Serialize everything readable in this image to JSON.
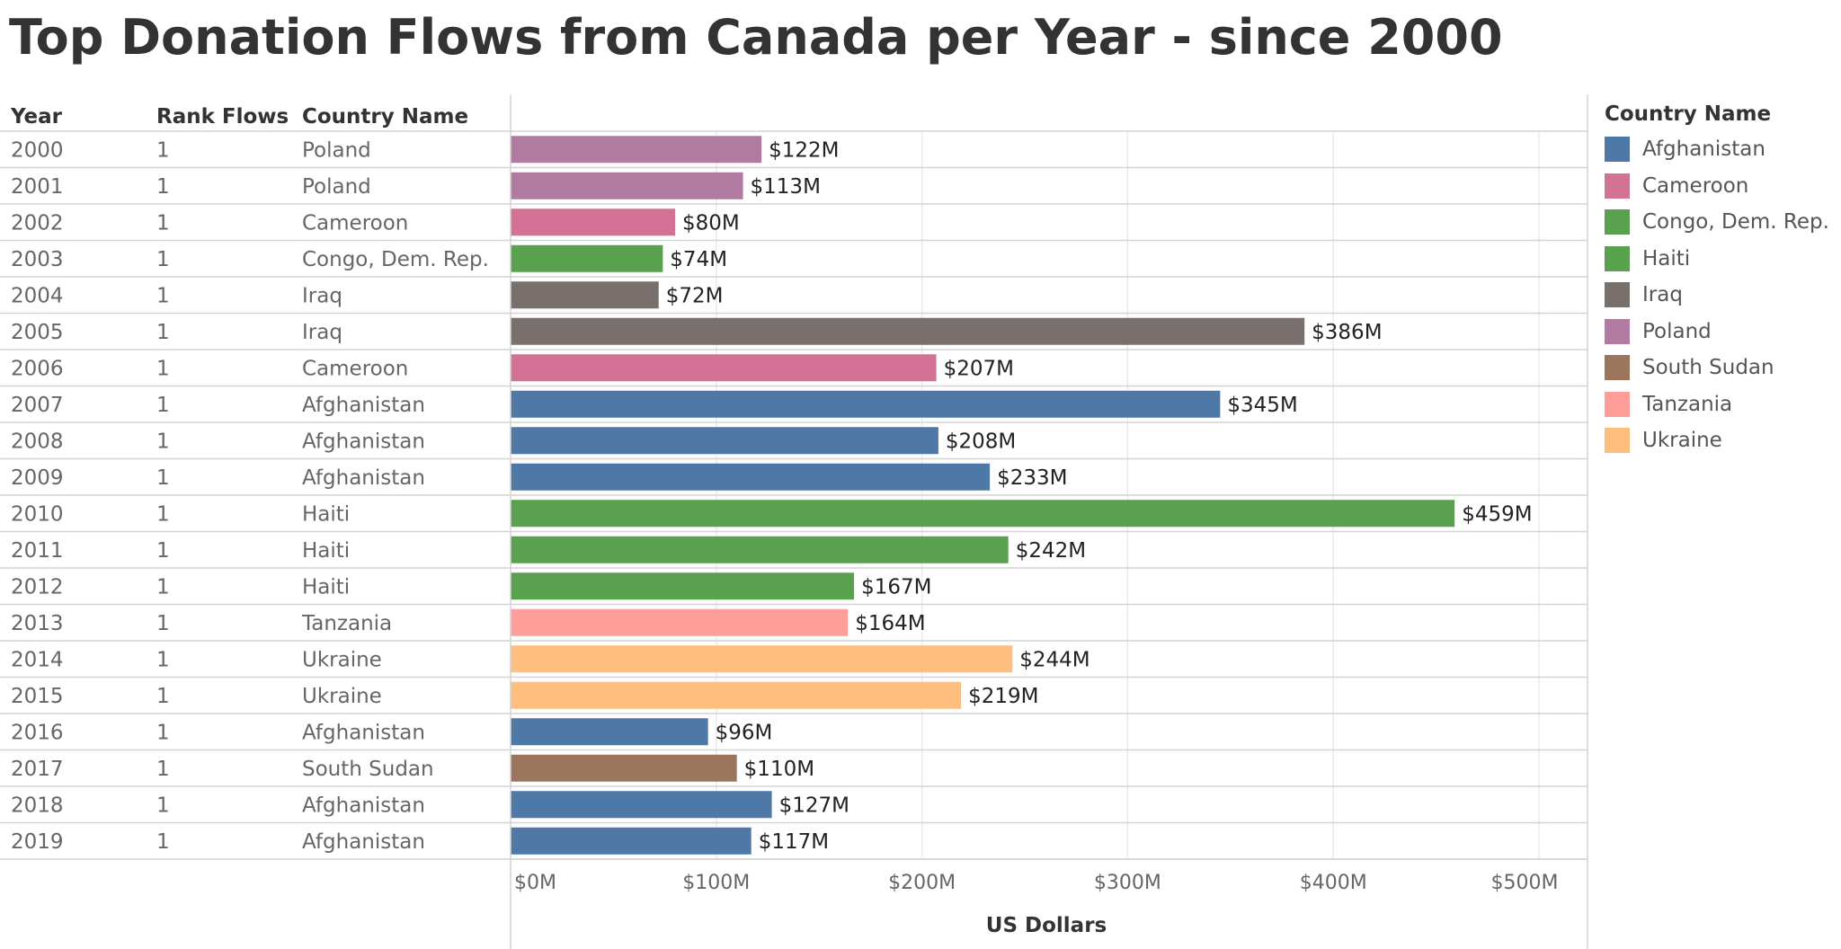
{
  "title": "Top Donation Flows from Canada per Year - since 2000",
  "table_headers": {
    "year": "Year",
    "rank": "Rank Flows",
    "country": "Country Name"
  },
  "legend": {
    "title": "Country Name",
    "items": [
      {
        "label": "Afghanistan",
        "color": "#4e79a7"
      },
      {
        "label": "Cameroon",
        "color": "#d37295"
      },
      {
        "label": "Congo, Dem. Rep.",
        "color": "#59a14f"
      },
      {
        "label": "Haiti",
        "color": "#59a14f"
      },
      {
        "label": "Iraq",
        "color": "#79706e"
      },
      {
        "label": "Poland",
        "color": "#b07aa1"
      },
      {
        "label": "South Sudan",
        "color": "#9c755f"
      },
      {
        "label": "Tanzania",
        "color": "#ff9d9a"
      },
      {
        "label": "Ukraine",
        "color": "#ffbe7d"
      }
    ]
  },
  "chart_data": {
    "type": "bar",
    "orientation": "horizontal",
    "xlabel": "US Dollars",
    "xlim": [
      0,
      500
    ],
    "x_ticks": [
      0,
      100,
      200,
      300,
      400,
      500
    ],
    "x_tick_labels": [
      "$0M",
      "$100M",
      "$200M",
      "$300M",
      "$400M",
      "$500M"
    ],
    "grid": true,
    "legend_position": "right",
    "rows": [
      {
        "year": "2000",
        "rank": "1",
        "country": "Poland",
        "value": 122,
        "label": "$122M"
      },
      {
        "year": "2001",
        "rank": "1",
        "country": "Poland",
        "value": 113,
        "label": "$113M"
      },
      {
        "year": "2002",
        "rank": "1",
        "country": "Cameroon",
        "value": 80,
        "label": "$80M"
      },
      {
        "year": "2003",
        "rank": "1",
        "country": "Congo, Dem. Rep.",
        "value": 74,
        "label": "$74M"
      },
      {
        "year": "2004",
        "rank": "1",
        "country": "Iraq",
        "value": 72,
        "label": "$72M"
      },
      {
        "year": "2005",
        "rank": "1",
        "country": "Iraq",
        "value": 386,
        "label": "$386M"
      },
      {
        "year": "2006",
        "rank": "1",
        "country": "Cameroon",
        "value": 207,
        "label": "$207M"
      },
      {
        "year": "2007",
        "rank": "1",
        "country": "Afghanistan",
        "value": 345,
        "label": "$345M"
      },
      {
        "year": "2008",
        "rank": "1",
        "country": "Afghanistan",
        "value": 208,
        "label": "$208M"
      },
      {
        "year": "2009",
        "rank": "1",
        "country": "Afghanistan",
        "value": 233,
        "label": "$233M"
      },
      {
        "year": "2010",
        "rank": "1",
        "country": "Haiti",
        "value": 459,
        "label": "$459M"
      },
      {
        "year": "2011",
        "rank": "1",
        "country": "Haiti",
        "value": 242,
        "label": "$242M"
      },
      {
        "year": "2012",
        "rank": "1",
        "country": "Haiti",
        "value": 167,
        "label": "$167M"
      },
      {
        "year": "2013",
        "rank": "1",
        "country": "Tanzania",
        "value": 164,
        "label": "$164M"
      },
      {
        "year": "2014",
        "rank": "1",
        "country": "Ukraine",
        "value": 244,
        "label": "$244M"
      },
      {
        "year": "2015",
        "rank": "1",
        "country": "Ukraine",
        "value": 219,
        "label": "$219M"
      },
      {
        "year": "2016",
        "rank": "1",
        "country": "Afghanistan",
        "value": 96,
        "label": "$96M"
      },
      {
        "year": "2017",
        "rank": "1",
        "country": "South Sudan",
        "value": 110,
        "label": "$110M"
      },
      {
        "year": "2018",
        "rank": "1",
        "country": "Afghanistan",
        "value": 127,
        "label": "$127M"
      },
      {
        "year": "2019",
        "rank": "1",
        "country": "Afghanistan",
        "value": 117,
        "label": "$117M"
      }
    ]
  }
}
